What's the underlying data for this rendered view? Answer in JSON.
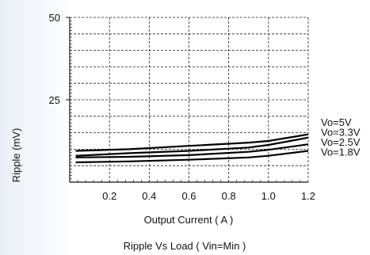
{
  "chart_data": {
    "type": "line",
    "title": "",
    "caption": "Ripple  Vs Load ( Vin=Min )",
    "xlabel": "Output Current ( A )",
    "ylabel": "Ripple (mV)",
    "xlim": [
      0,
      1.2
    ],
    "ylim": [
      0,
      50
    ],
    "x_ticks": [
      0.2,
      0.4,
      0.6,
      0.8,
      1.0,
      1.2
    ],
    "x_tick_labels": [
      "0.2",
      "0.4",
      "0.6",
      "0.8",
      "1.0",
      "1.2"
    ],
    "y_ticks": [
      25,
      50
    ],
    "y_tick_labels": [
      "25",
      "50"
    ],
    "grid": "dashed",
    "legend_position": "right",
    "series": [
      {
        "name": "Vo=5V",
        "x": [
          0.03,
          0.3,
          0.6,
          0.9,
          1.0,
          1.2
        ],
        "y": [
          9.5,
          10.0,
          11.0,
          12.0,
          12.5,
          14.5
        ]
      },
      {
        "name": "Vo=3.3V",
        "x": [
          0.03,
          0.3,
          0.6,
          0.9,
          1.0,
          1.2
        ],
        "y": [
          8.0,
          8.8,
          9.5,
          10.5,
          11.3,
          13.5
        ]
      },
      {
        "name": "Vo=2.5V",
        "x": [
          0.03,
          0.3,
          0.6,
          0.9,
          1.0,
          1.2
        ],
        "y": [
          7.5,
          7.7,
          8.2,
          9.2,
          9.8,
          11.5
        ]
      },
      {
        "name": "Vo=1.8V",
        "x": [
          0.03,
          0.3,
          0.6,
          0.9,
          1.0,
          1.2
        ],
        "y": [
          6.0,
          6.3,
          6.8,
          7.5,
          8.0,
          9.5
        ]
      }
    ]
  }
}
